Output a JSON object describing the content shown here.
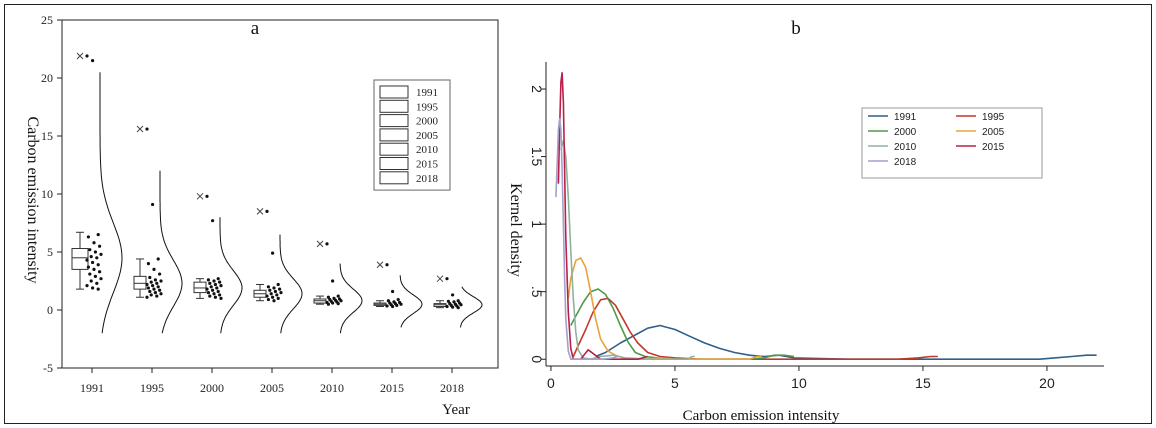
{
  "chart_data": [
    {
      "type": "box_scatter_density",
      "title": "a",
      "xlabel": "Year",
      "ylabel": "Carbon emission intensity",
      "ylim": [
        -5,
        25
      ],
      "yticks": [
        -5,
        0,
        5,
        10,
        15,
        20,
        25
      ],
      "categories": [
        "1991",
        "1995",
        "2000",
        "2005",
        "2010",
        "2015",
        "2018"
      ],
      "legend": [
        "1991",
        "1995",
        "2000",
        "2005",
        "2010",
        "2015",
        "2018"
      ],
      "legend_position": "top-right",
      "boxes": [
        {
          "cat": "1991",
          "min": 1.8,
          "q1": 3.5,
          "median": 4.5,
          "q3": 5.3,
          "max": 6.7,
          "outlier": 21.9
        },
        {
          "cat": "1995",
          "min": 1.1,
          "q1": 1.8,
          "median": 2.3,
          "q3": 2.9,
          "max": 4.4,
          "outlier": 15.6
        },
        {
          "cat": "2000",
          "min": 1.0,
          "q1": 1.5,
          "median": 1.9,
          "q3": 2.4,
          "max": 2.7,
          "outlier": 9.8
        },
        {
          "cat": "2005",
          "min": 0.8,
          "q1": 1.1,
          "median": 1.4,
          "q3": 1.7,
          "max": 2.2,
          "outlier": 8.5
        },
        {
          "cat": "2010",
          "min": 0.5,
          "q1": 0.6,
          "median": 0.8,
          "q3": 0.95,
          "max": 1.2,
          "outlier": 5.7
        },
        {
          "cat": "2015",
          "min": 0.3,
          "q1": 0.4,
          "median": 0.5,
          "q3": 0.6,
          "max": 0.8,
          "outlier": 3.9
        },
        {
          "cat": "2018",
          "min": 0.2,
          "q1": 0.3,
          "median": 0.45,
          "q3": 0.55,
          "max": 0.8,
          "outlier": 2.7
        }
      ],
      "points": [
        {
          "cat": "1991",
          "values": [
            21.9,
            21.5,
            6.5,
            6.3,
            5.8,
            5.5,
            5.2,
            5.0,
            4.8,
            4.6,
            4.5,
            4.3,
            4.1,
            3.9,
            3.7,
            3.5,
            3.3,
            3.1,
            2.9,
            2.7,
            2.5,
            2.3,
            2.1,
            1.9,
            1.8
          ]
        },
        {
          "cat": "1995",
          "values": [
            15.6,
            9.1,
            4.4,
            4.0,
            3.5,
            3.1,
            2.8,
            2.6,
            2.5,
            2.4,
            2.3,
            2.2,
            2.1,
            2.0,
            1.9,
            1.8,
            1.7,
            1.6,
            1.5,
            1.4,
            1.3,
            1.2,
            1.1
          ]
        },
        {
          "cat": "2000",
          "values": [
            9.8,
            7.7,
            2.7,
            2.6,
            2.5,
            2.4,
            2.3,
            2.2,
            2.1,
            2.0,
            1.9,
            1.8,
            1.7,
            1.6,
            1.5,
            1.4,
            1.3,
            1.2,
            1.1,
            1.0
          ]
        },
        {
          "cat": "2005",
          "values": [
            8.5,
            4.9,
            2.2,
            2.0,
            1.9,
            1.8,
            1.7,
            1.6,
            1.5,
            1.4,
            1.3,
            1.2,
            1.1,
            1.0,
            0.9,
            0.8
          ]
        },
        {
          "cat": "2010",
          "values": [
            5.7,
            2.5,
            1.2,
            1.1,
            1.0,
            0.95,
            0.9,
            0.85,
            0.8,
            0.75,
            0.7,
            0.65,
            0.6,
            0.55,
            0.5
          ]
        },
        {
          "cat": "2015",
          "values": [
            3.9,
            1.6,
            0.9,
            0.8,
            0.7,
            0.65,
            0.6,
            0.55,
            0.5,
            0.45,
            0.4,
            0.35,
            0.3
          ]
        },
        {
          "cat": "2018",
          "values": [
            2.7,
            1.3,
            0.8,
            0.75,
            0.7,
            0.6,
            0.55,
            0.5,
            0.45,
            0.4,
            0.35,
            0.3,
            0.25,
            0.2
          ]
        }
      ],
      "density_curves": [
        {
          "cat": "1991",
          "ymin": -2,
          "ymax": 20.5,
          "mode": 4.5,
          "sd": 3.0
        },
        {
          "cat": "1995",
          "ymin": -2,
          "ymax": 12.0,
          "mode": 2.3,
          "sd": 2.0
        },
        {
          "cat": "2000",
          "ymin": -2,
          "ymax": 8.0,
          "mode": 1.9,
          "sd": 1.5
        },
        {
          "cat": "2005",
          "ymin": -2,
          "ymax": 6.5,
          "mode": 1.4,
          "sd": 1.3
        },
        {
          "cat": "2010",
          "ymin": -2,
          "ymax": 4.0,
          "mode": 0.8,
          "sd": 1.0
        },
        {
          "cat": "2015",
          "ymin": -1.5,
          "ymax": 3.0,
          "mode": 0.5,
          "sd": 0.8
        },
        {
          "cat": "2018",
          "ymin": -1.5,
          "ymax": 2.0,
          "mode": 0.45,
          "sd": 0.7
        }
      ]
    },
    {
      "type": "line",
      "title": "b",
      "xlabel": "Carbon emission intensity",
      "ylabel": "Kernel density",
      "xlim": [
        -0.2,
        22.3
      ],
      "ylim": [
        -0.05,
        2.2
      ],
      "xticks": [
        "0",
        "5",
        "10",
        "15",
        "20"
      ],
      "yticks": [
        "0",
        ".5",
        "1",
        "1.5",
        "2"
      ],
      "xtick_values": [
        0,
        5,
        10,
        15,
        20
      ],
      "ytick_values": [
        0,
        0.5,
        1,
        1.5,
        2
      ],
      "legend_position": "top-right",
      "series": [
        {
          "name": "1991",
          "color": "#2f5f8a",
          "x": [
            1.8,
            2.2,
            2.8,
            3.4,
            3.9,
            4.4,
            5.0,
            5.6,
            6.2,
            6.8,
            7.4,
            8.0,
            8.6,
            9.2,
            9.8,
            12,
            14,
            16,
            18,
            19.7,
            20.3,
            21.0,
            21.6,
            22.0
          ],
          "y": [
            0.02,
            0.05,
            0.12,
            0.18,
            0.23,
            0.25,
            0.22,
            0.17,
            0.12,
            0.08,
            0.05,
            0.03,
            0.02,
            0.03,
            0.01,
            0.0,
            0.0,
            0.0,
            0.0,
            0.0,
            0.01,
            0.02,
            0.03,
            0.03
          ]
        },
        {
          "name": "1995",
          "color": "#c0392b",
          "x": [
            0.9,
            1.1,
            1.4,
            1.7,
            2.0,
            2.3,
            2.6,
            2.9,
            3.2,
            3.5,
            3.9,
            4.4,
            5.0,
            6,
            8,
            10,
            12,
            14,
            14.8,
            15.3,
            15.6
          ],
          "y": [
            0.02,
            0.1,
            0.22,
            0.35,
            0.44,
            0.45,
            0.4,
            0.3,
            0.2,
            0.12,
            0.05,
            0.02,
            0.01,
            0.0,
            0.0,
            0.0,
            0.0,
            0.0,
            0.01,
            0.02,
            0.02
          ]
        },
        {
          "name": "2000",
          "color": "#4e9a47",
          "x": [
            0.8,
            1.0,
            1.3,
            1.6,
            1.9,
            2.2,
            2.5,
            2.8,
            3.1,
            3.4,
            3.8,
            4.3,
            5,
            6,
            7,
            8,
            8.6,
            9.0,
            9.4,
            9.8
          ],
          "y": [
            0.25,
            0.32,
            0.42,
            0.5,
            0.52,
            0.48,
            0.38,
            0.25,
            0.13,
            0.05,
            0.02,
            0.01,
            0.0,
            0.0,
            0.0,
            0.0,
            0.01,
            0.03,
            0.03,
            0.02
          ]
        },
        {
          "name": "2005",
          "color": "#e8a33a",
          "x": [
            0.7,
            0.8,
            1.0,
            1.2,
            1.4,
            1.6,
            1.8,
            2.0,
            2.3,
            2.6,
            2.9,
            3.3,
            3.8,
            4.4,
            5,
            6,
            7,
            8,
            8.3,
            8.5
          ],
          "y": [
            0.45,
            0.6,
            0.73,
            0.75,
            0.68,
            0.5,
            0.3,
            0.15,
            0.06,
            0.03,
            0.01,
            0.0,
            0.0,
            0.01,
            0.0,
            0.0,
            0.0,
            0.0,
            0.02,
            0.02
          ]
        },
        {
          "name": "2010",
          "color": "#8fb39a",
          "x": [
            0.4,
            0.5,
            0.6,
            0.7,
            0.8,
            0.9,
            1.0,
            1.1,
            1.3,
            1.6,
            2.0,
            2.5,
            3,
            4,
            5,
            5.5,
            5.7,
            5.8
          ],
          "y": [
            1.55,
            1.62,
            1.5,
            1.2,
            0.8,
            0.45,
            0.2,
            0.07,
            0.01,
            0.0,
            0.02,
            0.03,
            0.01,
            0.0,
            0.0,
            0.0,
            0.02,
            0.02
          ]
        },
        {
          "name": "2015",
          "color": "#b8204a",
          "x": [
            0.3,
            0.35,
            0.4,
            0.45,
            0.5,
            0.55,
            0.6,
            0.7,
            0.8,
            0.9,
            1.0,
            1.2,
            1.5,
            2.0,
            2.5,
            3.0,
            3.5,
            3.9
          ],
          "y": [
            1.3,
            1.7,
            2.05,
            2.12,
            1.9,
            1.4,
            0.9,
            0.35,
            0.08,
            0.0,
            0.0,
            0.0,
            0.07,
            0.0,
            0.0,
            0.0,
            0.0,
            0.02
          ]
        },
        {
          "name": "2018",
          "color": "#a59fcc",
          "x": [
            0.2,
            0.25,
            0.3,
            0.35,
            0.4,
            0.45,
            0.5,
            0.55,
            0.6,
            0.7,
            0.8,
            1.0,
            1.3,
            1.7,
            2.1,
            2.5,
            2.7
          ],
          "y": [
            1.2,
            1.45,
            1.7,
            1.78,
            1.7,
            1.4,
            1.0,
            0.6,
            0.3,
            0.06,
            0.0,
            0.0,
            0.0,
            0.0,
            0.0,
            0.01,
            0.02
          ]
        }
      ]
    }
  ]
}
